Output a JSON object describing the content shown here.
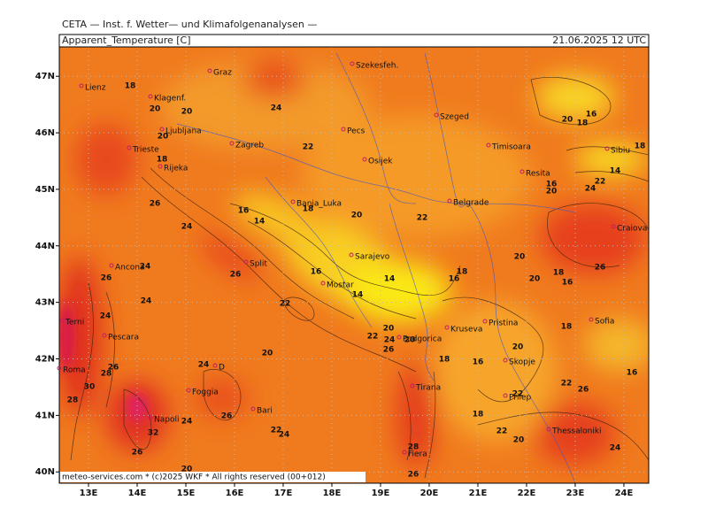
{
  "header": {
    "title": "CETA — Inst. f. Wetter— und Klimafolgenanalysen —",
    "variable": "Apparent_Temperature [C]",
    "valid_time": "21.06.2025 12 UTC"
  },
  "map": {
    "lon_range": [
      12.4,
      24.51
    ],
    "lat_range": [
      39.8,
      47.52
    ],
    "lon_ticks": [
      {
        "value": 13,
        "label": "13E"
      },
      {
        "value": 14,
        "label": "14E"
      },
      {
        "value": 15,
        "label": "15E"
      },
      {
        "value": 16,
        "label": "16E"
      },
      {
        "value": 17,
        "label": "17E"
      },
      {
        "value": 18,
        "label": "18E"
      },
      {
        "value": 19,
        "label": "19E"
      },
      {
        "value": 20,
        "label": "20E"
      },
      {
        "value": 21,
        "label": "21E"
      },
      {
        "value": 22,
        "label": "22E"
      },
      {
        "value": 23,
        "label": "23E"
      },
      {
        "value": 24,
        "label": "24E"
      }
    ],
    "lat_ticks": [
      {
        "value": 47,
        "label": "47N"
      },
      {
        "value": 46,
        "label": "46N"
      },
      {
        "value": 45,
        "label": "45N"
      },
      {
        "value": 44,
        "label": "44N"
      },
      {
        "value": 43,
        "label": "43N"
      },
      {
        "value": 42,
        "label": "42N"
      },
      {
        "value": 41,
        "label": "41N"
      },
      {
        "value": 40,
        "label": "40N"
      }
    ],
    "cities": [
      "Lienz",
      "Graz",
      "Szekesfeh.",
      "Klagenf.",
      "Szeged",
      "Ljubljana",
      "Pecs",
      "Zagreb",
      "Osijek",
      "Timisoara",
      "Sibiu",
      "Trieste",
      "Rijeka",
      "Resita",
      "Banja_Luka",
      "Belgrade",
      "Craiova",
      "Sarajevo",
      "Ancona",
      "Split",
      "Mostar",
      "Terni",
      "Kruseva",
      "Pristina",
      "Sofia",
      "Podgorica",
      "Pescara",
      "Skopje",
      "Roma",
      "D",
      "Foggia",
      "Tirana",
      "Prilep",
      "Bari",
      "Napoli",
      "Thessaloniki",
      "Fiera"
    ],
    "contour_labels": [
      18,
      20,
      20,
      24,
      20,
      22,
      18,
      26,
      16,
      14,
      18,
      20,
      22,
      24,
      24,
      26,
      26,
      16,
      18,
      16,
      14,
      14,
      22,
      24,
      24,
      20,
      22,
      24,
      20,
      26,
      18,
      16,
      20,
      20,
      18,
      16,
      20,
      26,
      20,
      16,
      18,
      18,
      14,
      22,
      24,
      16,
      20,
      20,
      24,
      26,
      28,
      30,
      28,
      24,
      26,
      32,
      26,
      20,
      22,
      24,
      22,
      22,
      26,
      18,
      16,
      18,
      22,
      20,
      28,
      26,
      24
    ]
  },
  "footer": "meteo-services.com * (c)2025 WKF * All rights reserved (00+012)"
}
